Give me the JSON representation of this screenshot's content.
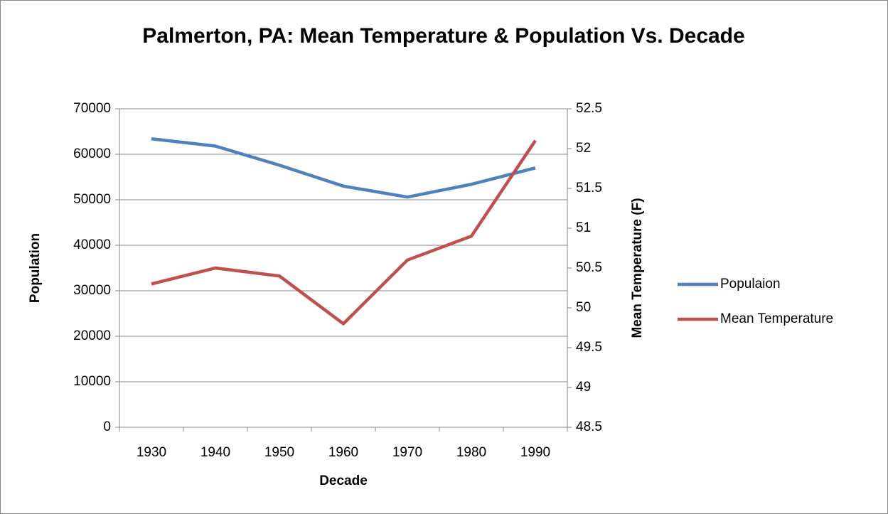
{
  "chart_data": {
    "type": "line",
    "title": "Palmerton, PA: Mean Temperature & Population Vs. Decade",
    "x_label": "Decade",
    "y_label": "Population",
    "y2_label": "Mean Temperature (F)",
    "categories": [
      "1930",
      "1940",
      "1950",
      "1960",
      "1970",
      "1980",
      "1990"
    ],
    "series": [
      {
        "name": "Populaion",
        "color": "#4f81bd",
        "values": [
          63400,
          61800,
          57600,
          53000,
          50600,
          53400,
          57000
        ]
      },
      {
        "name": "Mean Temperature",
        "color": "#c0504d",
        "axis": "y2",
        "values": [
          50.3,
          50.5,
          50.4,
          49.8,
          50.6,
          50.9,
          52.1
        ]
      }
    ],
    "ylim": [
      0,
      70000
    ],
    "yticks": [
      0,
      10000,
      20000,
      30000,
      40000,
      50000,
      60000,
      70000
    ],
    "y2lim": [
      48.5,
      52.5
    ],
    "y2ticks": [
      48.5,
      49,
      49.5,
      50,
      50.5,
      51,
      51.5,
      52,
      52.5
    ],
    "grid": true,
    "legend": "right"
  }
}
